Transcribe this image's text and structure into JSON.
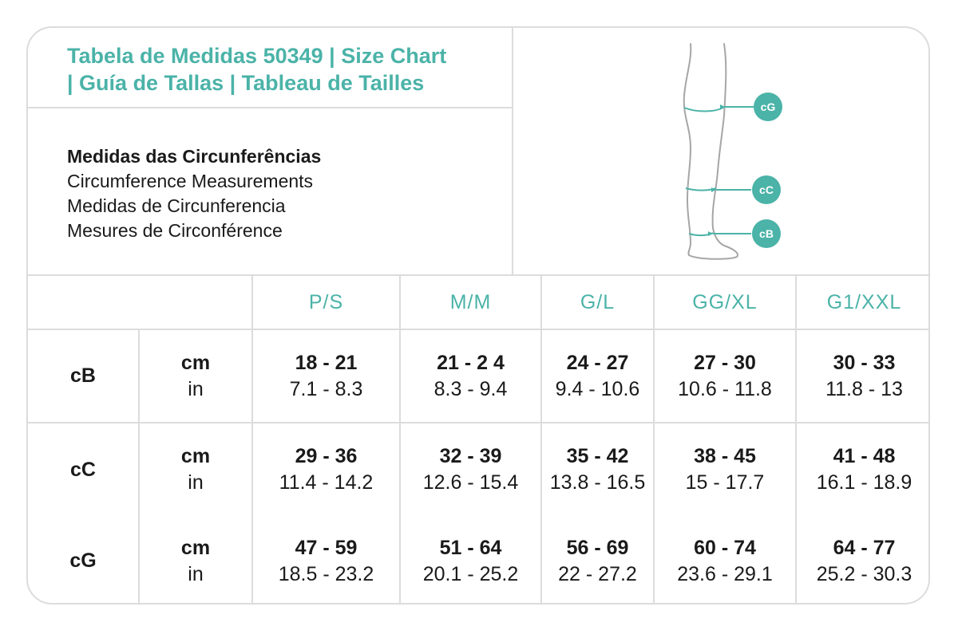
{
  "header": {
    "title_line1": "Tabela de Medidas 50349 | Size Chart",
    "title_line2": "| Guía de Tallas | Tableau de Tailles"
  },
  "measurements": {
    "pt": "Medidas das Circunferências",
    "en": "Circumference Measurements",
    "es": "Medidas de Circunferencia",
    "fr": "Mesures de Circonférence"
  },
  "diagram": {
    "labels": [
      "cG",
      "cC",
      "cB"
    ],
    "accent_color": "#4bb3a8",
    "outline_color": "#a6a6a6",
    "icon": "leg-diagram-icon"
  },
  "table": {
    "sizes": [
      "P/S",
      "M/M",
      "G/L",
      "GG/XL",
      "G1/XXL"
    ],
    "unit_cm": "cm",
    "unit_in": "in",
    "rows": [
      {
        "name": "cB",
        "cm": [
          "18 - 21",
          "21 - 2 4",
          "24 - 27",
          "27 - 30",
          "30 - 33"
        ],
        "inch": [
          "7.1 - 8.3",
          "8.3 - 9.4",
          "9.4 - 10.6",
          "10.6 - 11.8",
          "11.8 - 13"
        ]
      },
      {
        "name": "cC",
        "cm": [
          "29 - 36",
          "32 - 39",
          "35 - 42",
          "38 - 45",
          "41 - 48"
        ],
        "inch": [
          "11.4 - 14.2",
          "12.6 - 15.4",
          "13.8 - 16.5",
          "15 - 17.7",
          "16.1 - 18.9"
        ]
      },
      {
        "name": "cG",
        "cm": [
          "47 - 59",
          "51 - 64",
          "56 - 69",
          "60 - 74",
          "64 - 77"
        ],
        "inch": [
          "18.5 - 23.2",
          "20.1 - 25.2",
          "22 - 27.2",
          "23.6 - 29.1",
          "25.2 - 30.3"
        ]
      }
    ]
  }
}
